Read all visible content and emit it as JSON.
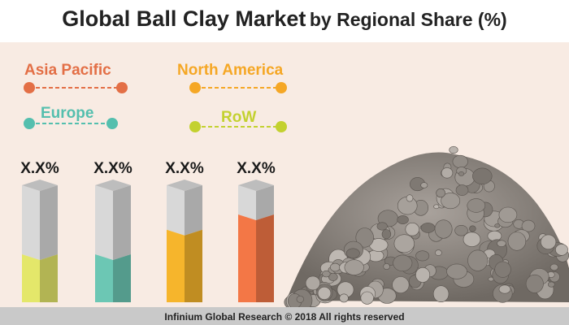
{
  "header": {
    "title_main": "Global Ball Clay Market",
    "title_sub": "by Regional Share (%)"
  },
  "chart_data": {
    "type": "bar",
    "categories": [
      "Asia Pacific",
      "Europe",
      "North America",
      "RoW"
    ],
    "series": [
      {
        "values": [
          0.41,
          0.41,
          0.62,
          0.75
        ],
        "colors": [
          "#e4e76a",
          "#6cc7b4",
          "#f6b52c",
          "#f37746"
        ],
        "value_labels": [
          "X.X%",
          "X.X%",
          "X.X%",
          "X.X%"
        ]
      }
    ],
    "legend": {
      "placement": "top-left",
      "entries": [
        {
          "label": "Asia Pacific",
          "color": "#e36f46"
        },
        {
          "label": "North America",
          "color": "#f5a725"
        },
        {
          "label": "Europe",
          "color": "#54bfae"
        },
        {
          "label": "RoW",
          "color": "#c3d12f"
        }
      ]
    }
  },
  "footer": {
    "text": "Infinium Global Research © 2018 All rights reserved"
  }
}
